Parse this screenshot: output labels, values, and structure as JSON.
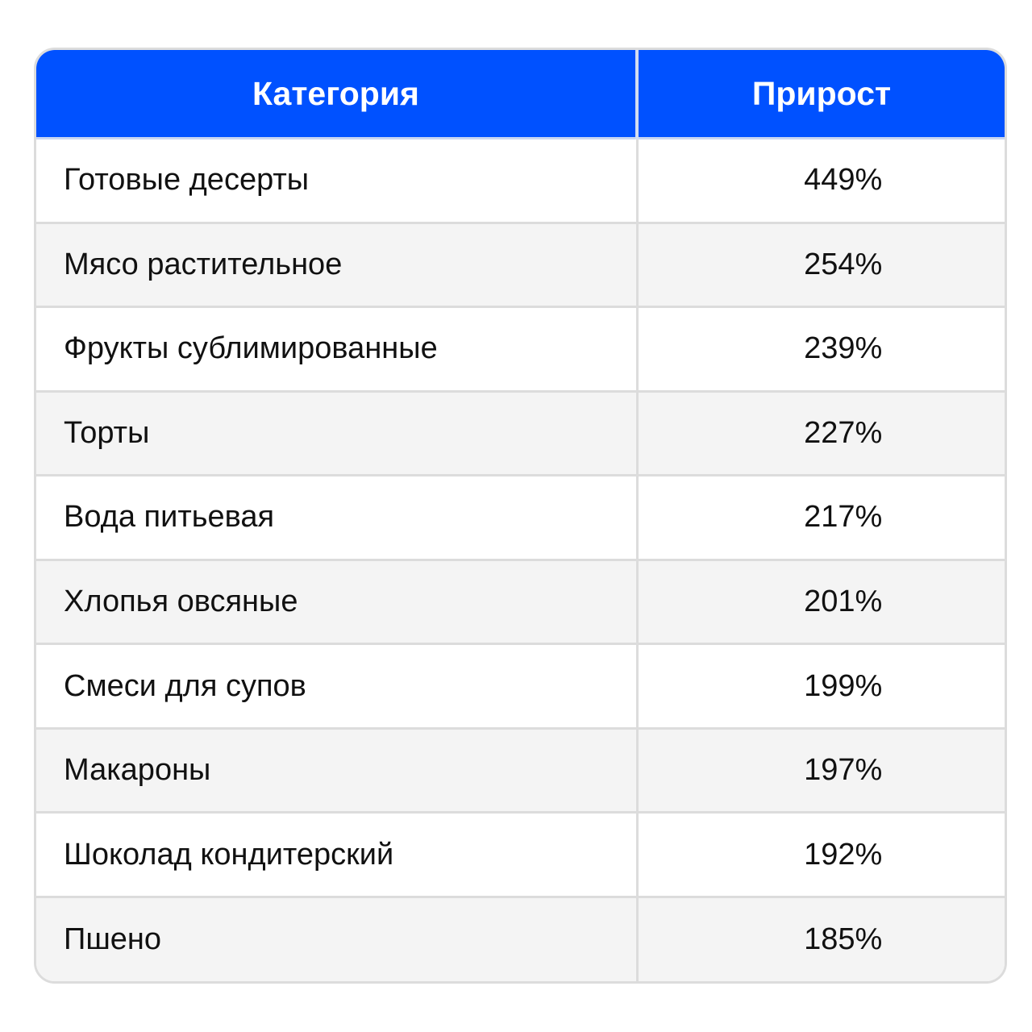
{
  "colors": {
    "header_bg": "#0051ff",
    "header_text": "#ffffff",
    "row_alt_bg": "#f4f4f4",
    "border": "#dcdcdc"
  },
  "chart_data": {
    "type": "table",
    "columns": [
      "Категория",
      "Прирост"
    ],
    "rows": [
      {
        "category": "Готовые десерты",
        "growth": "449%"
      },
      {
        "category": "Мясо растительное",
        "growth": "254%"
      },
      {
        "category": "Фрукты сублимированные",
        "growth": "239%"
      },
      {
        "category": "Торты",
        "growth": "227%"
      },
      {
        "category": "Вода питьевая",
        "growth": "217%"
      },
      {
        "category": "Хлопья овсяные",
        "growth": "201%"
      },
      {
        "category": "Смеси для супов",
        "growth": "199%"
      },
      {
        "category": "Макароны",
        "growth": "197%"
      },
      {
        "category": "Шоколад кондитерский",
        "growth": "192%"
      },
      {
        "category": "Пшено",
        "growth": "185%"
      }
    ]
  }
}
